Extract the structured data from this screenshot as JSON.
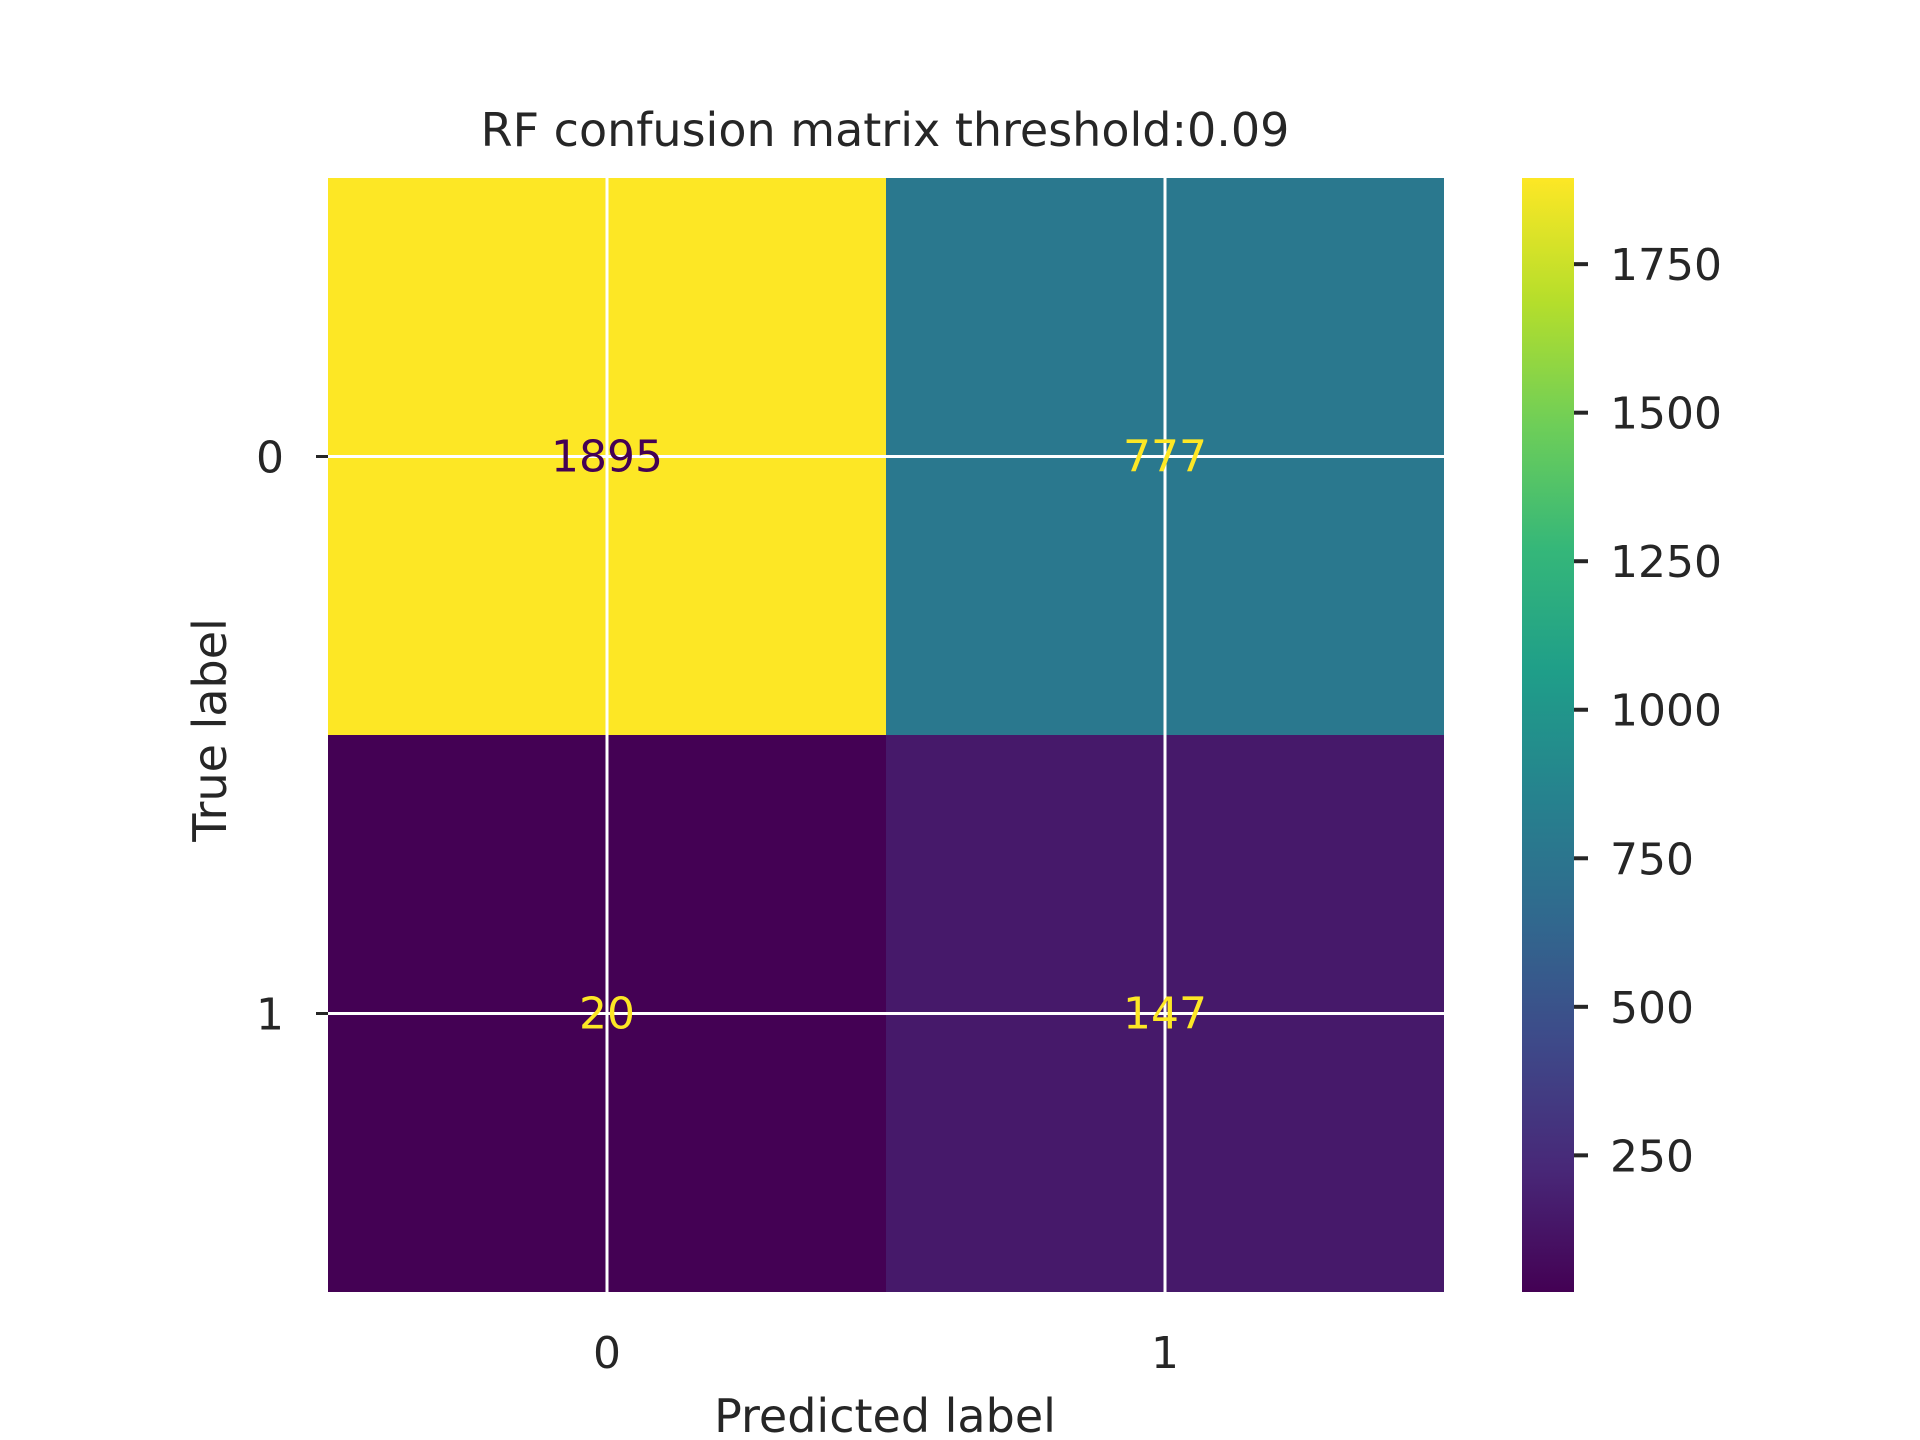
{
  "chart_data": {
    "type": "heatmap",
    "title": "RF confusion matrix threshold:0.09",
    "xlabel": "Predicted label",
    "ylabel": "True label",
    "x_tick_labels": [
      "0",
      "1"
    ],
    "y_tick_labels": [
      "0",
      "1"
    ],
    "matrix": [
      [
        1895,
        777
      ],
      [
        20,
        147
      ]
    ],
    "cell_labels": [
      [
        "1895",
        "777"
      ],
      [
        "20",
        "147"
      ]
    ],
    "colormap": "viridis",
    "colorbar": {
      "range": [
        20,
        1895
      ],
      "ticks": [
        250,
        500,
        750,
        1000,
        1250,
        1500,
        1750
      ],
      "tick_labels": [
        "250",
        "500",
        "750",
        "1000",
        "1250",
        "1500",
        "1750"
      ]
    },
    "grid": true,
    "colors": {
      "low_text": "#fde725",
      "high_text": "#440154",
      "grid": "#ffffff",
      "text": "#262626"
    }
  }
}
